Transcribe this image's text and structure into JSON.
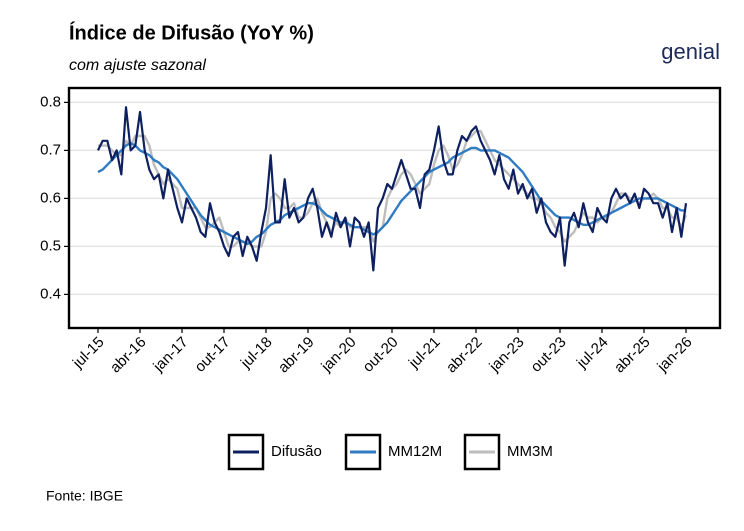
{
  "chart_data": {
    "type": "line",
    "title": "Índice de Difusão (YoY %)",
    "subtitle": "com ajuste sazonal",
    "logo": "genial",
    "source": "Fonte: IBGE",
    "categories": [
      "jul-15",
      null,
      null,
      null,
      null,
      null,
      null,
      null,
      null,
      "abr-16",
      null,
      null,
      null,
      null,
      null,
      null,
      null,
      null,
      "jan-17",
      null,
      null,
      null,
      null,
      null,
      null,
      null,
      null,
      "out-17",
      null,
      null,
      null,
      null,
      null,
      null,
      null,
      null,
      "jul-18",
      null,
      null,
      null,
      null,
      null,
      null,
      null,
      null,
      "abr-19",
      null,
      null,
      null,
      null,
      null,
      null,
      null,
      null,
      "jan-20",
      null,
      null,
      null,
      null,
      null,
      null,
      null,
      null,
      "out-20",
      null,
      null,
      null,
      null,
      null,
      null,
      null,
      null,
      "jul-21",
      null,
      null,
      null,
      null,
      null,
      null,
      null,
      null,
      "abr-22",
      null,
      null,
      null,
      null,
      null,
      null,
      null,
      null,
      "jan-23",
      null,
      null,
      null,
      null,
      null,
      null,
      null,
      null,
      "out-23",
      null,
      null,
      null,
      null,
      null,
      null,
      null,
      null,
      "jul-24",
      null,
      null,
      null,
      null,
      null,
      null,
      null,
      null,
      "abr-25",
      null,
      null,
      null,
      null,
      null,
      null,
      null,
      null,
      "jan-26"
    ],
    "series": [
      {
        "name": "Difusão",
        "color": "#0e2060",
        "width": 2.2,
        "values": [
          0.7,
          0.72,
          0.72,
          0.68,
          0.7,
          0.65,
          0.79,
          0.7,
          0.71,
          0.78,
          0.7,
          0.66,
          0.64,
          0.65,
          0.6,
          0.66,
          0.62,
          0.58,
          0.55,
          0.6,
          0.58,
          0.56,
          0.53,
          0.52,
          0.59,
          0.55,
          0.53,
          0.5,
          0.48,
          0.52,
          0.53,
          0.48,
          0.52,
          0.5,
          0.47,
          0.53,
          0.58,
          0.69,
          0.55,
          0.55,
          0.64,
          0.56,
          0.58,
          0.55,
          0.56,
          0.6,
          0.62,
          0.58,
          0.52,
          0.55,
          0.52,
          0.57,
          0.54,
          0.56,
          0.5,
          0.56,
          0.55,
          0.52,
          0.55,
          0.45,
          0.58,
          0.6,
          0.63,
          0.62,
          0.65,
          0.68,
          0.65,
          0.62,
          0.62,
          0.58,
          0.65,
          0.66,
          0.7,
          0.75,
          0.68,
          0.65,
          0.65,
          0.7,
          0.73,
          0.72,
          0.74,
          0.75,
          0.72,
          0.7,
          0.68,
          0.65,
          0.69,
          0.64,
          0.62,
          0.66,
          0.61,
          0.63,
          0.6,
          0.62,
          0.57,
          0.6,
          0.55,
          0.53,
          0.52,
          0.56,
          0.46,
          0.55,
          0.57,
          0.54,
          0.59,
          0.55,
          0.53,
          0.58,
          0.56,
          0.55,
          0.6,
          0.62,
          0.6,
          0.61,
          0.59,
          0.61,
          0.58,
          0.62,
          0.61,
          0.59,
          0.59,
          0.56,
          0.59,
          0.53,
          0.58,
          0.52,
          0.59
        ]
      },
      {
        "name": "MM12M",
        "color": "#2f7cc2",
        "width": 2.4,
        "values": [
          0.655,
          0.66,
          0.67,
          0.68,
          0.69,
          0.7,
          0.71,
          0.715,
          0.71,
          0.7,
          0.695,
          0.69,
          0.68,
          0.675,
          0.665,
          0.66,
          0.65,
          0.64,
          0.625,
          0.61,
          0.595,
          0.58,
          0.565,
          0.555,
          0.545,
          0.54,
          0.535,
          0.53,
          0.525,
          0.52,
          0.515,
          0.51,
          0.505,
          0.51,
          0.52,
          0.525,
          0.535,
          0.545,
          0.55,
          0.555,
          0.565,
          0.57,
          0.575,
          0.58,
          0.585,
          0.59,
          0.59,
          0.585,
          0.575,
          0.565,
          0.56,
          0.555,
          0.55,
          0.55,
          0.545,
          0.54,
          0.54,
          0.535,
          0.53,
          0.525,
          0.53,
          0.54,
          0.55,
          0.565,
          0.58,
          0.595,
          0.605,
          0.615,
          0.625,
          0.635,
          0.645,
          0.655,
          0.66,
          0.665,
          0.67,
          0.675,
          0.685,
          0.69,
          0.695,
          0.7,
          0.705,
          0.705,
          0.7,
          0.7,
          0.7,
          0.7,
          0.695,
          0.69,
          0.685,
          0.675,
          0.665,
          0.655,
          0.64,
          0.625,
          0.61,
          0.595,
          0.585,
          0.575,
          0.565,
          0.56,
          0.56,
          0.56,
          0.555,
          0.55,
          0.545,
          0.545,
          0.55,
          0.555,
          0.56,
          0.565,
          0.57,
          0.575,
          0.58,
          0.585,
          0.59,
          0.595,
          0.6,
          0.6,
          0.6,
          0.6,
          0.6,
          0.595,
          0.59,
          0.585,
          0.58,
          0.575,
          0.575
        ]
      },
      {
        "name": "MM3M",
        "color": "#bdbdbd",
        "width": 2.4,
        "values": [
          0.71,
          0.71,
          0.71,
          0.7,
          0.69,
          0.69,
          0.72,
          0.71,
          0.73,
          0.73,
          0.73,
          0.71,
          0.67,
          0.65,
          0.63,
          0.64,
          0.63,
          0.62,
          0.58,
          0.58,
          0.58,
          0.58,
          0.56,
          0.54,
          0.54,
          0.55,
          0.56,
          0.53,
          0.5,
          0.5,
          0.51,
          0.51,
          0.51,
          0.5,
          0.5,
          0.5,
          0.53,
          0.6,
          0.61,
          0.6,
          0.58,
          0.58,
          0.59,
          0.56,
          0.56,
          0.57,
          0.59,
          0.6,
          0.57,
          0.55,
          0.53,
          0.55,
          0.54,
          0.56,
          0.54,
          0.54,
          0.54,
          0.54,
          0.54,
          0.51,
          0.53,
          0.54,
          0.6,
          0.62,
          0.63,
          0.65,
          0.66,
          0.65,
          0.63,
          0.61,
          0.62,
          0.63,
          0.67,
          0.7,
          0.71,
          0.69,
          0.66,
          0.67,
          0.69,
          0.72,
          0.73,
          0.74,
          0.74,
          0.72,
          0.7,
          0.68,
          0.67,
          0.66,
          0.65,
          0.64,
          0.63,
          0.62,
          0.61,
          0.6,
          0.6,
          0.59,
          0.57,
          0.56,
          0.54,
          0.53,
          0.51,
          0.52,
          0.53,
          0.55,
          0.57,
          0.56,
          0.56,
          0.55,
          0.56,
          0.56,
          0.57,
          0.59,
          0.61,
          0.61,
          0.6,
          0.6,
          0.59,
          0.6,
          0.6,
          0.61,
          0.6,
          0.58,
          0.58,
          0.56,
          0.56,
          0.54,
          0.565
        ]
      }
    ],
    "ylim": [
      0.33,
      0.83
    ],
    "yticks": [
      0.4,
      0.5,
      0.6,
      0.7,
      0.8
    ],
    "grid": true,
    "legend": "bottom"
  }
}
